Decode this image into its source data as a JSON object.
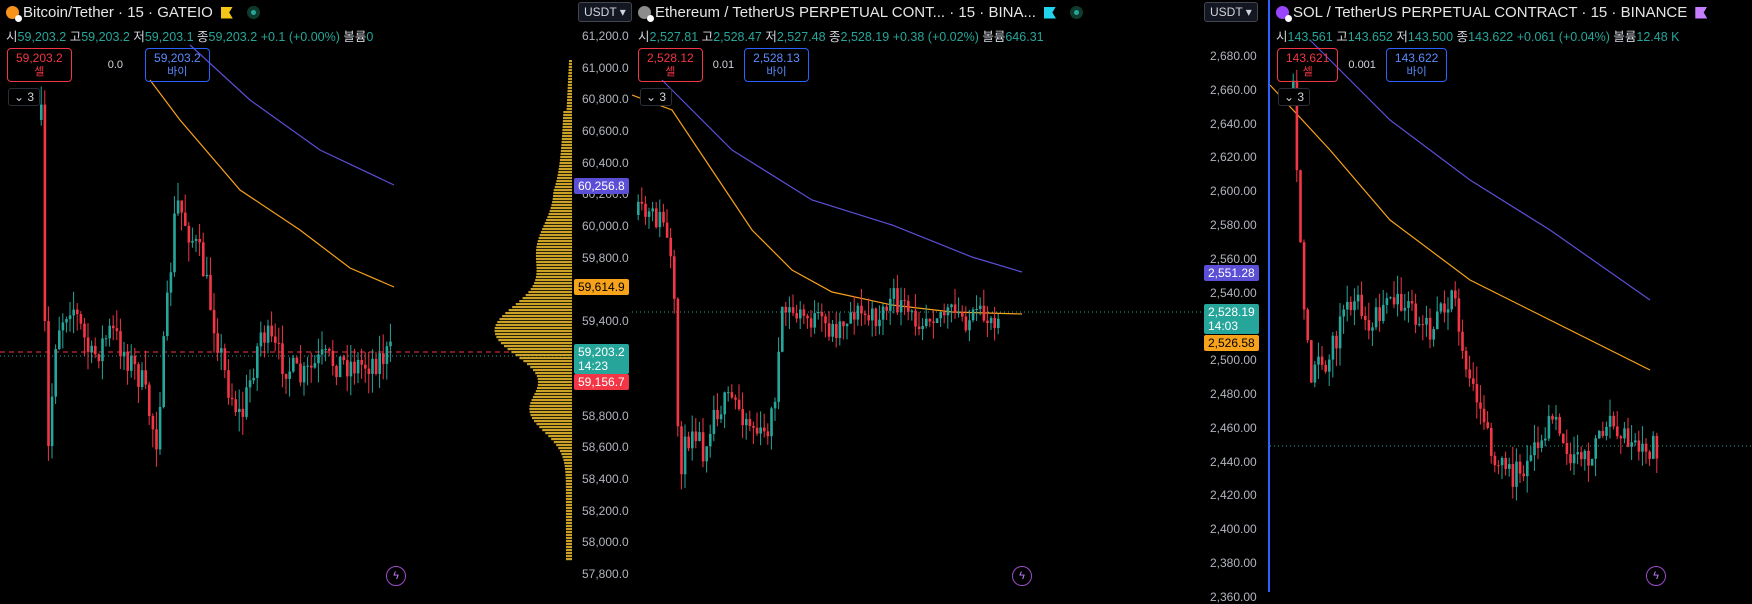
{
  "colors": {
    "up": "#26a69a",
    "down": "#f23645",
    "ma_fast": "#f7a21b",
    "ma_slow": "#5b4fd6",
    "profile": "#c9a227",
    "accent": "#2962ff"
  },
  "panes": [
    {
      "id": "btc",
      "title": "Bitcoin/Tether · 15 · GATEIO",
      "coin_color": "#f7931a",
      "flag_color": "#f5c518",
      "ohlc": [
        {
          "k": "시",
          "v": "59,203.2"
        },
        {
          "k": "고",
          "v": "59,203.2"
        },
        {
          "k": "저",
          "v": "59,203.1"
        },
        {
          "k": "종",
          "v": "59,203.2"
        }
      ],
      "change": "+0.1 (+0.00%)",
      "vol_label": "볼륨",
      "vol": "0",
      "sell_price": "59,203.2",
      "sell_label": "셀",
      "spread": "0.0",
      "buy_price": "59,203.2",
      "buy_label": "바이",
      "collapse": "3",
      "currency": "USDT",
      "ticks": [
        "61,200.0",
        "61,000.0",
        "60,800.0",
        "60,600.0",
        "60,400.0",
        "60,200.0",
        "60,000.0",
        "59,800.0",
        "59,600.0",
        "59,400.0",
        "59,200.0",
        "59,000.0",
        "58,800.0",
        "58,600.0",
        "58,400.0",
        "58,200.0",
        "58,000.0",
        "57,800.0"
      ],
      "badges": [
        {
          "text": "60,256.8",
          "color": "#5b4fd6"
        },
        {
          "text": "59,614.9",
          "color": "#f7a21b",
          "dark": true
        },
        {
          "text": "59,203.2",
          "sub": "14:23",
          "color": "#26a69a"
        },
        {
          "text": "59,156.7",
          "color": "#f23645"
        }
      ]
    },
    {
      "id": "eth",
      "title": "Ethereum / TetherUS PERPETUAL CONT... · 15 · BINA...",
      "coin_color": "#8c8c8c",
      "flag_color": "#22d3ee",
      "ohlc": [
        {
          "k": "시",
          "v": "2,527.81"
        },
        {
          "k": "고",
          "v": "2,528.47"
        },
        {
          "k": "저",
          "v": "2,527.48"
        },
        {
          "k": "종",
          "v": "2,528.19"
        }
      ],
      "change": "+0.38 (+0.02%)",
      "vol_label": "볼륨",
      "vol": "646.31",
      "sell_price": "2,528.12",
      "sell_label": "셀",
      "spread": "0.01",
      "buy_price": "2,528.13",
      "buy_label": "바이",
      "collapse": "3",
      "currency": "USDT",
      "ticks": [
        "2,680.00",
        "2,660.00",
        "2,640.00",
        "2,620.00",
        "2,600.00",
        "2,580.00",
        "2,560.00",
        "2,540.00",
        "2,520.00",
        "2,500.00",
        "2,480.00",
        "2,460.00",
        "2,440.00",
        "2,420.00",
        "2,400.00",
        "2,380.00",
        "2,360.00"
      ],
      "badges": [
        {
          "text": "2,551.28",
          "color": "#5b4fd6"
        },
        {
          "text": "2,528.19",
          "sub": "14:03",
          "color": "#26a69a"
        },
        {
          "text": "2,526.58",
          "color": "#f7a21b",
          "dark": true
        }
      ]
    },
    {
      "id": "sol",
      "title": "SOL / TetherUS PERPETUAL CONTRACT · 15 · BINANCE",
      "coin_color": "#9945ff",
      "flag_color": "#c77dff",
      "ohlc": [
        {
          "k": "시",
          "v": "143.561"
        },
        {
          "k": "고",
          "v": "143.652"
        },
        {
          "k": "저",
          "v": "143.500"
        },
        {
          "k": "종",
          "v": "143.622"
        }
      ],
      "change": "+0.061 (+0.04%)",
      "vol_label": "볼륨",
      "vol": "12.48 K",
      "sell_price": "143.621",
      "sell_label": "셀",
      "spread": "0.001",
      "buy_price": "143.622",
      "buy_label": "바이",
      "collapse": "3"
    }
  ]
}
